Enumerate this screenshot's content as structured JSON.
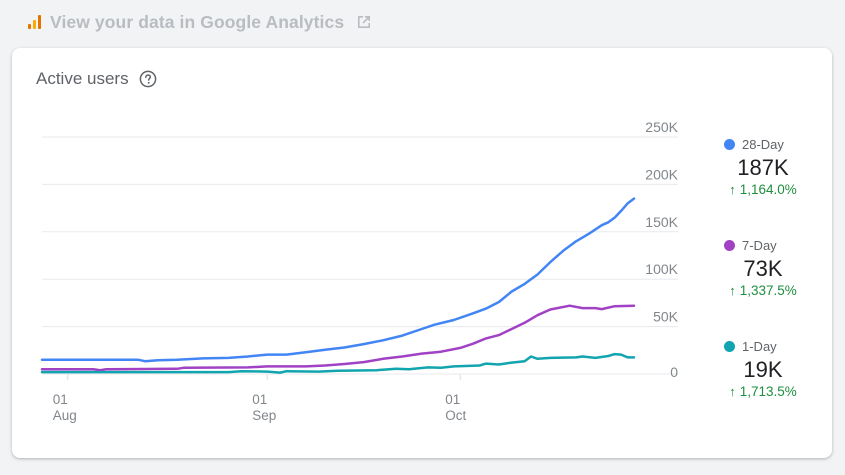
{
  "header": {
    "link_text": "View your data in Google Analytics",
    "logo_icon": "google-analytics-logo-icon",
    "external_icon": "open-in-new-icon"
  },
  "card": {
    "title": "Active users",
    "help_icon": "help-circle-icon"
  },
  "colors": {
    "28_day": "#4285f4",
    "7_day": "#a142c5",
    "1_day": "#12a4af",
    "positive_change": "#1e8e3e"
  },
  "legend": [
    {
      "name": "28-Day",
      "value": "187K",
      "change": "1,164.0%",
      "change_icon": "arrow-up-icon"
    },
    {
      "name": "7-Day",
      "value": "73K",
      "change": "1,337.5%",
      "change_icon": "arrow-up-icon"
    },
    {
      "name": "1-Day",
      "value": "19K",
      "change": "1,713.5%",
      "change_icon": "arrow-up-icon"
    }
  ],
  "chart_data": {
    "type": "line",
    "title": "",
    "xlabel": "",
    "ylabel": "",
    "y_axis_position": "right",
    "ylim": [
      0,
      250000
    ],
    "y_ticks": [
      {
        "value": 0,
        "label": "0"
      },
      {
        "value": 50000,
        "label": "50K"
      },
      {
        "value": 100000,
        "label": "100K"
      },
      {
        "value": 150000,
        "label": "150K"
      },
      {
        "value": 200000,
        "label": "200K"
      },
      {
        "value": 250000,
        "label": "250K"
      }
    ],
    "x_range": [
      "2024-07-28",
      "2024-10-28"
    ],
    "x_ticks": [
      {
        "date": "2024-08-01",
        "day": "01",
        "month": "Aug"
      },
      {
        "date": "2024-09-01",
        "day": "01",
        "month": "Sep"
      },
      {
        "date": "2024-10-01",
        "day": "01",
        "month": "Oct"
      }
    ],
    "grid": true,
    "legend_position": "right",
    "series": [
      {
        "name": "28-Day",
        "color": "#4285f4",
        "points": [
          [
            "2024-07-28",
            15000
          ],
          [
            "2024-08-01",
            15000
          ],
          [
            "2024-08-05",
            15000
          ],
          [
            "2024-08-09",
            15000
          ],
          [
            "2024-08-12",
            15000
          ],
          [
            "2024-08-13",
            13500
          ],
          [
            "2024-08-15",
            14500
          ],
          [
            "2024-08-18",
            15000
          ],
          [
            "2024-08-22",
            16500
          ],
          [
            "2024-08-26",
            17000
          ],
          [
            "2024-08-29",
            18500
          ],
          [
            "2024-09-01",
            20500
          ],
          [
            "2024-09-04",
            20500
          ],
          [
            "2024-09-07",
            23000
          ],
          [
            "2024-09-10",
            25500
          ],
          [
            "2024-09-13",
            28000
          ],
          [
            "2024-09-16",
            31500
          ],
          [
            "2024-09-19",
            35500
          ],
          [
            "2024-09-22",
            40500
          ],
          [
            "2024-09-25",
            47500
          ],
          [
            "2024-09-27",
            52000
          ],
          [
            "2024-09-30",
            57000
          ],
          [
            "2024-10-03",
            64000
          ],
          [
            "2024-10-05",
            69000
          ],
          [
            "2024-10-07",
            76000
          ],
          [
            "2024-10-09",
            87000
          ],
          [
            "2024-10-11",
            95000
          ],
          [
            "2024-10-13",
            105000
          ],
          [
            "2024-10-15",
            118000
          ],
          [
            "2024-10-17",
            130000
          ],
          [
            "2024-10-19",
            140000
          ],
          [
            "2024-10-21",
            148000
          ],
          [
            "2024-10-23",
            157000
          ],
          [
            "2024-10-24",
            160000
          ],
          [
            "2024-10-25",
            165000
          ],
          [
            "2024-10-26",
            172000
          ],
          [
            "2024-10-27",
            180000
          ],
          [
            "2024-10-28",
            185000
          ]
        ]
      },
      {
        "name": "7-Day",
        "color": "#a142c5",
        "points": [
          [
            "2024-07-28",
            5000
          ],
          [
            "2024-08-05",
            5000
          ],
          [
            "2024-08-06",
            4000
          ],
          [
            "2024-08-07",
            5000
          ],
          [
            "2024-08-18",
            5500
          ],
          [
            "2024-08-19",
            6500
          ],
          [
            "2024-08-29",
            7000
          ],
          [
            "2024-09-01",
            8000
          ],
          [
            "2024-09-07",
            8000
          ],
          [
            "2024-09-10",
            9000
          ],
          [
            "2024-09-13",
            10500
          ],
          [
            "2024-09-16",
            12500
          ],
          [
            "2024-09-19",
            16000
          ],
          [
            "2024-09-22",
            18500
          ],
          [
            "2024-09-25",
            21500
          ],
          [
            "2024-09-28",
            23500
          ],
          [
            "2024-10-01",
            27500
          ],
          [
            "2024-10-03",
            32000
          ],
          [
            "2024-10-05",
            37500
          ],
          [
            "2024-10-07",
            41000
          ],
          [
            "2024-10-09",
            47500
          ],
          [
            "2024-10-11",
            54000
          ],
          [
            "2024-10-13",
            62000
          ],
          [
            "2024-10-15",
            68000
          ],
          [
            "2024-10-18",
            72000
          ],
          [
            "2024-10-20",
            69500
          ],
          [
            "2024-10-22",
            69500
          ],
          [
            "2024-10-23",
            68500
          ],
          [
            "2024-10-25",
            71500
          ],
          [
            "2024-10-28",
            72000
          ]
        ]
      },
      {
        "name": "1-Day",
        "color": "#12a4af",
        "points": [
          [
            "2024-07-28",
            2000
          ],
          [
            "2024-08-26",
            2000
          ],
          [
            "2024-08-28",
            3000
          ],
          [
            "2024-09-01",
            2500
          ],
          [
            "2024-09-03",
            1500
          ],
          [
            "2024-09-04",
            3000
          ],
          [
            "2024-09-09",
            2500
          ],
          [
            "2024-09-12",
            3500
          ],
          [
            "2024-09-18",
            4000
          ],
          [
            "2024-09-21",
            5500
          ],
          [
            "2024-09-23",
            5000
          ],
          [
            "2024-09-26",
            7000
          ],
          [
            "2024-09-28",
            6500
          ],
          [
            "2024-09-30",
            8000
          ],
          [
            "2024-10-04",
            9000
          ],
          [
            "2024-10-05",
            11000
          ],
          [
            "2024-10-07",
            10000
          ],
          [
            "2024-10-09",
            12000
          ],
          [
            "2024-10-11",
            13500
          ],
          [
            "2024-10-12",
            18500
          ],
          [
            "2024-10-13",
            16000
          ],
          [
            "2024-10-15",
            17000
          ],
          [
            "2024-10-19",
            17500
          ],
          [
            "2024-10-20",
            18500
          ],
          [
            "2024-10-22",
            17000
          ],
          [
            "2024-10-24",
            19000
          ],
          [
            "2024-10-25",
            21000
          ],
          [
            "2024-10-26",
            20500
          ],
          [
            "2024-10-27",
            17500
          ],
          [
            "2024-10-28",
            17500
          ]
        ]
      }
    ]
  }
}
